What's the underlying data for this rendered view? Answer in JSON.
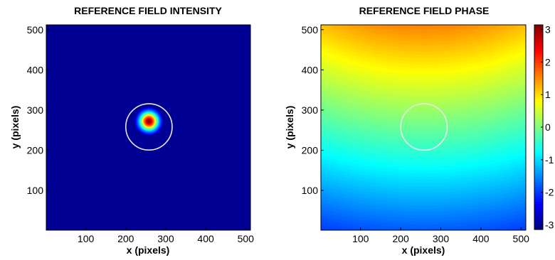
{
  "chart_data": [
    {
      "type": "heatmap",
      "title": "REFERENCE FIELD INTENSITY",
      "xlabel": "x (pixels)",
      "ylabel": "y (pixels)",
      "xlim": [
        1,
        512
      ],
      "ylim": [
        1,
        512
      ],
      "xticks": [
        100,
        200,
        300,
        400,
        500
      ],
      "yticks": [
        100,
        200,
        300,
        400,
        500
      ],
      "colormap": "jet",
      "background_value": "min (dark blue)",
      "spot_center": [
        258,
        272
      ],
      "spot_radius_approx": 35,
      "overlay_circle": {
        "center": [
          258,
          258
        ],
        "radius": 58,
        "color": "#e8e8e8"
      }
    },
    {
      "type": "heatmap",
      "title": "REFERENCE FIELD PHASE",
      "xlabel": "x (pixels)",
      "ylabel": "y (pixels)",
      "xlim": [
        1,
        512
      ],
      "ylim": [
        1,
        512
      ],
      "xticks": [
        100,
        200,
        300,
        400,
        500
      ],
      "yticks": [
        100,
        200,
        300,
        400,
        500
      ],
      "colormap": "jet",
      "clim": [
        -3.14,
        3.14
      ],
      "colorbar_ticks": [
        3,
        2,
        1,
        0,
        -1,
        -2,
        -3
      ],
      "phase_curvature_center": [
        258,
        1050
      ],
      "phase_curvature_radius_ref": 560,
      "phase_at_top": 1.6,
      "phase_at_bottom": -2.0,
      "overlay_circle": {
        "center": [
          258,
          258
        ],
        "radius": 58,
        "color": "#e8e8e8"
      }
    }
  ]
}
